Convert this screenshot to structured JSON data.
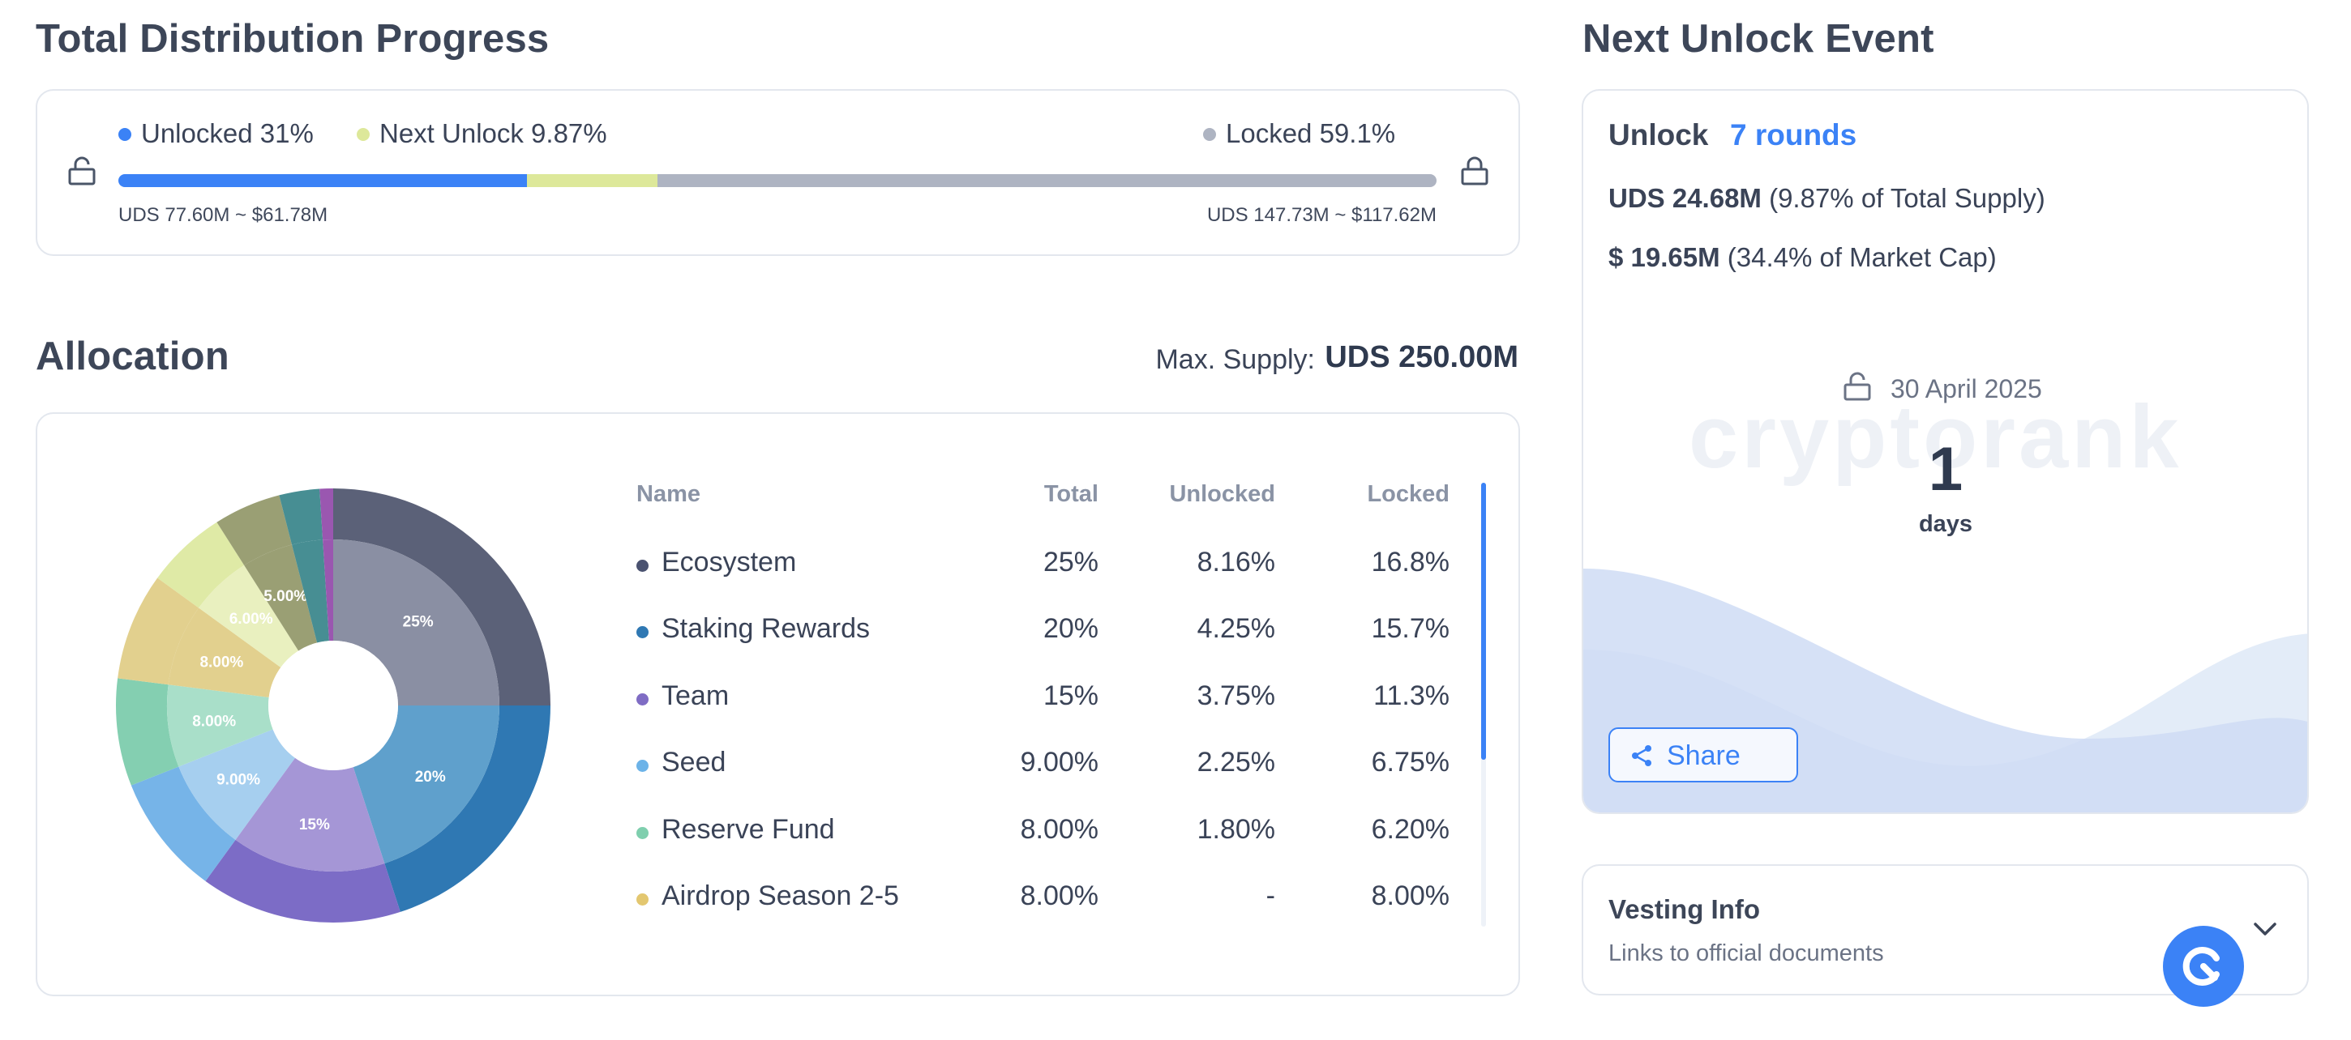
{
  "distribution": {
    "title": "Total Distribution Progress",
    "unlocked_label": "Unlocked 31%",
    "next_unlock_label": "Next Unlock 9.87%",
    "locked_label": "Locked 59.1%",
    "unlocked_amount": "UDS 77.60M ~ $61.78M",
    "locked_amount": "UDS 147.73M ~ $117.62M",
    "unlocked_pct": 31,
    "next_unlock_pct": 9.87,
    "locked_pct": 59.1,
    "colors": {
      "unlocked": "#3b82f6",
      "next": "#dde89a",
      "locked": "#aeb4c2"
    }
  },
  "allocation": {
    "title": "Allocation",
    "max_supply_label": "Max. Supply:",
    "max_supply_value": "UDS 250.00M",
    "columns": [
      "Name",
      "Total",
      "Unlocked",
      "Locked"
    ],
    "rows": [
      {
        "name": "Ecosystem",
        "total": "25%",
        "unlocked": "8.16%",
        "locked": "16.8%",
        "color": "#4a5270"
      },
      {
        "name": "Staking Rewards",
        "total": "20%",
        "unlocked": "4.25%",
        "locked": "15.7%",
        "color": "#2f78b3"
      },
      {
        "name": "Team",
        "total": "15%",
        "unlocked": "3.75%",
        "locked": "11.3%",
        "color": "#7f6cc4"
      },
      {
        "name": "Seed",
        "total": "9.00%",
        "unlocked": "2.25%",
        "locked": "6.75%",
        "color": "#6cb3e8"
      },
      {
        "name": "Reserve Fund",
        "total": "8.00%",
        "unlocked": "1.80%",
        "locked": "6.20%",
        "color": "#7fcfae"
      },
      {
        "name": "Airdrop Season 2-5",
        "total": "8.00%",
        "unlocked": "-",
        "locked": "8.00%",
        "color": "#e3c770"
      }
    ],
    "pie_labels": [
      "25%",
      "20%",
      "15%",
      "9.00%",
      "8.00%",
      "8.00%",
      "6.00%",
      "5.00%"
    ],
    "pie_slices": [
      {
        "value": 25,
        "outer": "#5b6178",
        "inner": "#8a8fa3"
      },
      {
        "value": 20,
        "outer": "#2f78b3",
        "inner": "#5fa0cc"
      },
      {
        "value": 15,
        "outer": "#7c6cc6",
        "inner": "#a596d6"
      },
      {
        "value": 9,
        "outer": "#76b4e8",
        "inner": "#a6cfef"
      },
      {
        "value": 8,
        "outer": "#84cfb1",
        "inner": "#a9dfc9"
      },
      {
        "value": 8,
        "outer": "#e2d08e",
        "inner": "#e2d08e"
      },
      {
        "value": 6,
        "outer": "#dfeaa6",
        "inner": "#e9f0bf"
      },
      {
        "value": 5,
        "outer": "#9a9f74",
        "inner": "#9a9f74"
      },
      {
        "value": 3,
        "outer": "#478e93",
        "inner": "#478e93"
      },
      {
        "value": 1,
        "outer": "#9a57b0",
        "inner": "#9a57b0"
      }
    ]
  },
  "next_unlock": {
    "title": "Next Unlock Event",
    "unlock_label": "Unlock",
    "rounds": "7 rounds",
    "supply_amount": "UDS 24.68M",
    "supply_note": "(9.87% of Total Supply)",
    "cap_amount": "$ 19.65M",
    "cap_note": "(34.4% of Market Cap)",
    "date": "30 April 2025",
    "days_count": "1",
    "days_label": "days",
    "share_label": "Share",
    "watermark": "cryptorank"
  },
  "vesting": {
    "title": "Vesting Info",
    "subtitle": "Links to official documents"
  }
}
